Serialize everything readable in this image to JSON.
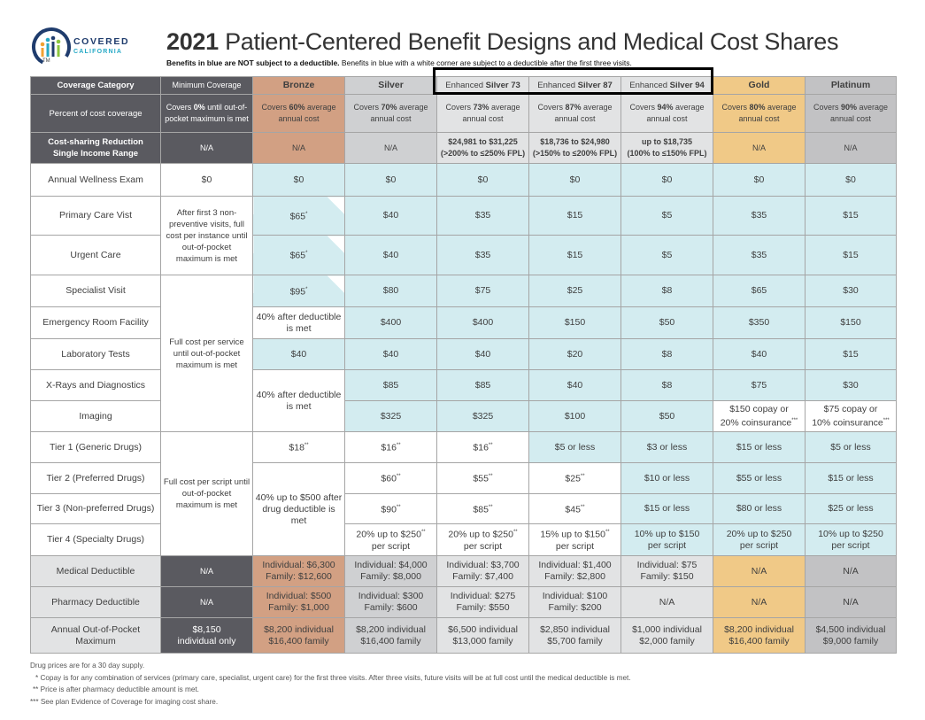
{
  "brand": {
    "logo_word": "COVERED",
    "logo_sub": "CALIFORNIA",
    "logo_tm": "TM"
  },
  "title": {
    "year": "2021",
    "text": "Patient-Centered Benefit Designs and Medical Cost Shares"
  },
  "subtitle": {
    "bold": "Benefits in blue are NOT subject to a deductible.",
    "rest": "Benefits in blue with a white corner are subject to a deductible after the first three visits."
  },
  "header": {
    "category": "Coverage Category",
    "minimum": "Minimum Coverage",
    "bronze": "Bronze",
    "silver": "Silver",
    "es73_prefix": "Enhanced",
    "es73_bold": "Silver 73",
    "es87_prefix": "Enhanced",
    "es87_bold": "Silver 87",
    "es94_prefix": "Enhanced",
    "es94_bold": "Silver 94",
    "gold": "Gold",
    "platinum": "Platinum"
  },
  "percent_row": {
    "label": "Percent of cost coverage",
    "minimum": {
      "pre": "Covers",
      "bold": "0%",
      "post": "until out-of-pocket maximum is met"
    },
    "bronze": {
      "pre": "Covers",
      "bold": "60%",
      "post": "average annual cost"
    },
    "silver": {
      "pre": "Covers",
      "bold": "70%",
      "post": "average annual cost"
    },
    "es73": {
      "pre": "Covers",
      "bold": "73%",
      "post": "average annual cost"
    },
    "es87": {
      "pre": "Covers",
      "bold": "87%",
      "post": "average annual cost"
    },
    "es94": {
      "pre": "Covers",
      "bold": "94%",
      "post": "average annual cost"
    },
    "gold": {
      "pre": "Covers",
      "bold": "80%",
      "post": "average annual cost"
    },
    "platinum": {
      "pre": "Covers",
      "bold": "90%",
      "post": "average annual cost"
    }
  },
  "csr_row": {
    "label_1": "Cost-sharing Reduction",
    "label_2": "Single Income Range",
    "minimum": "N/A",
    "bronze": "N/A",
    "silver": "N/A",
    "es73_1": "$24,981 to $31,225",
    "es73_2": "(>200% to ≤250% FPL)",
    "es87_1": "$18,736 to $24,980",
    "es87_2": "(>150% to ≤200% FPL)",
    "es94_1": "up to $18,735",
    "es94_2": "(100% to ≤150% FPL)",
    "gold": "N/A",
    "platinum": "N/A"
  },
  "rows": {
    "wellness": {
      "label": "Annual Wellness Exam",
      "minimum": "$0",
      "bronze": "$0",
      "silver": "$0",
      "es73": "$0",
      "es87": "$0",
      "es94": "$0",
      "gold": "$0",
      "platinum": "$0"
    },
    "primary": {
      "label": "Primary Care Vist",
      "bronze": "$65",
      "bronze_mark": "*",
      "silver": "$40",
      "es73": "$35",
      "es87": "$15",
      "es94": "$5",
      "gold": "$35",
      "platinum": "$15"
    },
    "urgent": {
      "label": "Urgent Care",
      "bronze": "$65",
      "bronze_mark": "*",
      "silver": "$40",
      "es73": "$35",
      "es87": "$15",
      "es94": "$5",
      "gold": "$35",
      "platinum": "$15"
    },
    "specialist": {
      "label": "Specialist Visit",
      "bronze": "$95",
      "bronze_mark": "*",
      "silver": "$80",
      "es73": "$75",
      "es87": "$25",
      "es94": "$8",
      "gold": "$65",
      "platinum": "$30"
    },
    "er": {
      "label": "Emergency Room Facility",
      "bronze": "40% after deductible is met",
      "silver": "$400",
      "es73": "$400",
      "es87": "$150",
      "es94": "$50",
      "gold": "$350",
      "platinum": "$150"
    },
    "lab": {
      "label": "Laboratory Tests",
      "bronze": "$40",
      "silver": "$40",
      "es73": "$40",
      "es87": "$20",
      "es94": "$8",
      "gold": "$40",
      "platinum": "$15"
    },
    "xray": {
      "label": "X-Rays and Diagnostics",
      "silver": "$85",
      "es73": "$85",
      "es87": "$40",
      "es94": "$8",
      "gold": "$75",
      "platinum": "$30"
    },
    "imaging": {
      "label": "Imaging",
      "silver": "$325",
      "es73": "$325",
      "es87": "$100",
      "es94": "$50",
      "gold_1": "$150 copay or",
      "gold_2": "20% coinsurance",
      "gold_mark": "***",
      "platinum_1": "$75 copay or",
      "platinum_2": "10% coinsurance",
      "platinum_mark": "***"
    },
    "xray_imaging_bronze": "40% after deductible is met",
    "tier1": {
      "label": "Tier 1 (Generic Drugs)",
      "bronze": "$18",
      "bronze_mark": "**",
      "silver": "$16",
      "silver_mark": "**",
      "es73": "$16",
      "es73_mark": "**",
      "es87": "$5 or less",
      "es94": "$3 or less",
      "gold": "$15 or less",
      "platinum": "$5 or less"
    },
    "tier2": {
      "label": "Tier 2 (Preferred Drugs)",
      "silver": "$60",
      "silver_mark": "**",
      "es73": "$55",
      "es73_mark": "**",
      "es87": "$25",
      "es87_mark": "**",
      "es94": "$10 or less",
      "gold": "$55 or less",
      "platinum": "$15 or less"
    },
    "tier3": {
      "label": "Tier 3 (Non-preferred Drugs)",
      "silver": "$90",
      "silver_mark": "**",
      "es73": "$85",
      "es73_mark": "**",
      "es87": "$45",
      "es87_mark": "**",
      "es94": "$15 or less",
      "gold": "$80 or less",
      "platinum": "$25 or less"
    },
    "tier4": {
      "label": "Tier 4 (Specialty Drugs)",
      "silver_1": "20% up to $250",
      "silver_mark": "**",
      "silver_2": "per script",
      "es73_1": "20% up to $250",
      "es73_mark": "**",
      "es73_2": "per script",
      "es87_1": "15% up to $150",
      "es87_mark": "**",
      "es87_2": "per script",
      "es94_1": "10% up to $150",
      "es94_2": "per script",
      "gold_1": "20% up to $250",
      "gold_2": "per script",
      "platinum_1": "10% up to $250",
      "platinum_2": "per script"
    },
    "drugs_bronze": "40% up to $500 after drug deductible is met",
    "med_deductible": {
      "label": "Medical Deductible",
      "minimum": "N/A",
      "bronze_1": "Individual: $6,300",
      "bronze_2": "Family: $12,600",
      "silver_1": "Individual: $4,000",
      "silver_2": "Family: $8,000",
      "es73_1": "Individual: $3,700",
      "es73_2": "Family: $7,400",
      "es87_1": "Individual: $1,400",
      "es87_2": "Family: $2,800",
      "es94_1": "Individual: $75",
      "es94_2": "Family: $150",
      "gold": "N/A",
      "platinum": "N/A"
    },
    "rx_deductible": {
      "label": "Pharmacy Deductible",
      "minimum": "N/A",
      "bronze_1": "Individual: $500",
      "bronze_2": "Family: $1,000",
      "silver_1": "Individual: $300",
      "silver_2": "Family: $600",
      "es73_1": "Individual: $275",
      "es73_2": "Family: $550",
      "es87_1": "Individual: $100",
      "es87_2": "Family: $200",
      "es94": "N/A",
      "gold": "N/A",
      "platinum": "N/A"
    },
    "oop": {
      "label_1": "Annual Out-of-Pocket",
      "label_2": "Maximum",
      "minimum_1": "$8,150",
      "minimum_2": "individual only",
      "bronze_1": "$8,200 individual",
      "bronze_2": "$16,400 family",
      "silver_1": "$8,200 individual",
      "silver_2": "$16,400 family",
      "es73_1": "$6,500 individual",
      "es73_2": "$13,000 family",
      "es87_1": "$2,850 individual",
      "es87_2": "$5,700 family",
      "es94_1": "$1,000 individual",
      "es94_2": "$2,000 family",
      "gold_1": "$8,200 individual",
      "gold_2": "$16,400 family",
      "platinum_1": "$4,500 individual",
      "platinum_2": "$9,000 family"
    }
  },
  "minimum_merged": {
    "visits": "After first 3 non-preventive visits, full cost per instance until out-of-pocket maximum is met",
    "services": "Full cost per service until out-of-pocket maximum is met",
    "drugs": "Full cost per script until out-of-pocket maximum is met"
  },
  "footnotes": {
    "f0": "Drug prices are for a 30 day supply.",
    "f1": "* Copay is for any combination of services (primary care, specialist, urgent care) for the first three visits. After three visits, future visits will be at full cost until the medical deductible is met.",
    "f2": "** Price is after pharmacy deductible amount is met.",
    "f3": "*** See plan Evidence of Coverage for imaging cost share."
  },
  "colors": {
    "blue_cell": "#d3ecf0",
    "bronze": "#d2a083",
    "gold": "#f0c987",
    "dark": "#5a5a60",
    "silver": "#cfd0d2"
  }
}
